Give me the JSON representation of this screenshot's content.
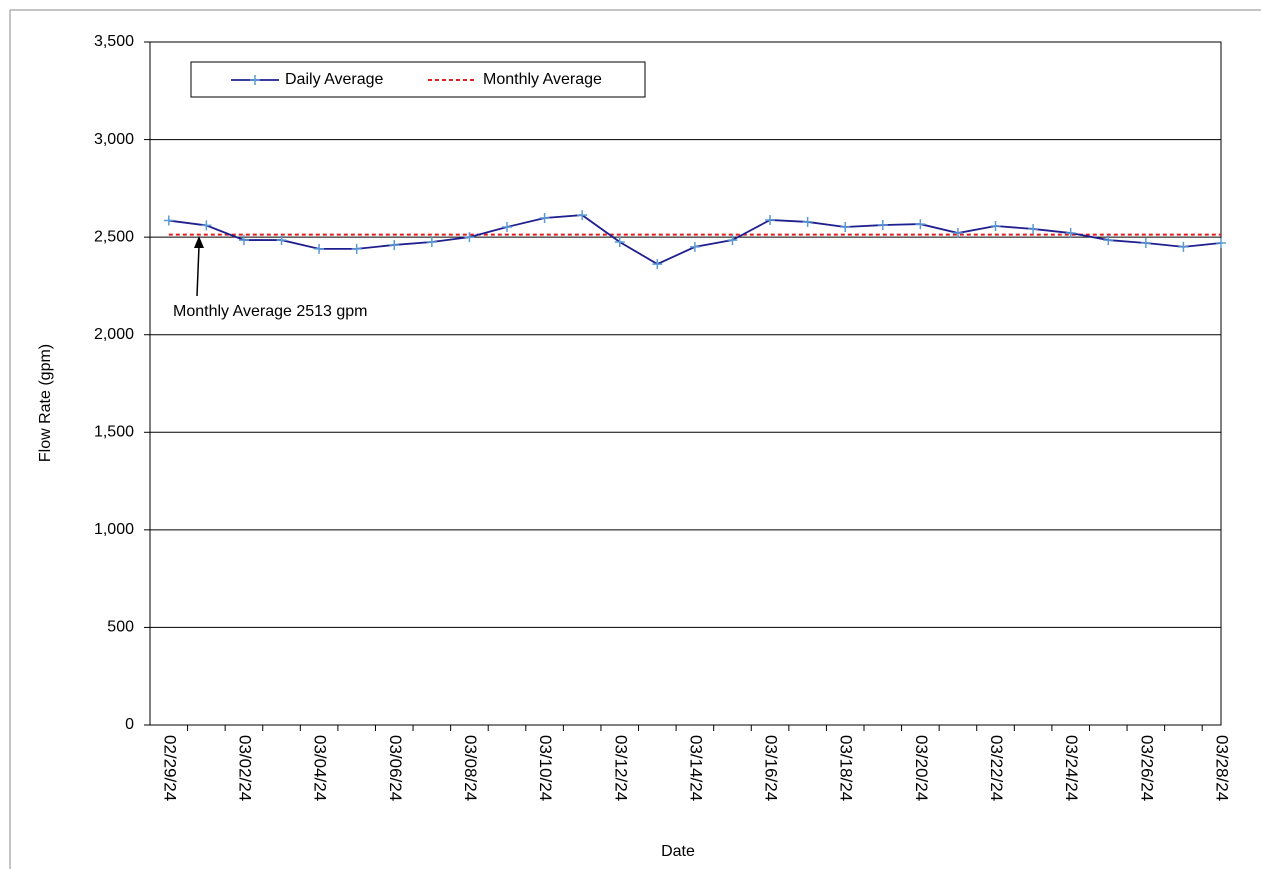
{
  "chart_data": {
    "type": "line",
    "x_label": "Date",
    "y_label": "Flow Rate (gpm)",
    "annotation": "Monthly Average 2513 gpm",
    "categories": [
      "02/29/24",
      null,
      "03/02/24",
      null,
      "03/04/24",
      null,
      "03/06/24",
      null,
      "03/08/24",
      null,
      "03/10/24",
      null,
      "03/12/24",
      null,
      "03/14/24",
      null,
      "03/16/24",
      null,
      "03/18/24",
      null,
      "03/20/24",
      null,
      "03/22/24",
      null,
      "03/24/24",
      null,
      "03/26/24",
      null,
      "03/28/24"
    ],
    "series": [
      {
        "name": "Daily Average",
        "color": "#1f1f8f",
        "marker_color": "#5b9bd5",
        "values": [
          2585,
          2560,
          2485,
          2485,
          2440,
          2440,
          2460,
          2475,
          2500,
          2552,
          2598,
          2613,
          2475,
          2362,
          2450,
          2485,
          2588,
          2578,
          2552,
          2562,
          2567,
          2521,
          2557,
          2542,
          2521,
          2485,
          2470,
          2450,
          2470
        ]
      },
      {
        "name": "Monthly Average",
        "color": "#e02020",
        "dashed": true,
        "values": [
          2513,
          2513,
          2513,
          2513,
          2513,
          2513,
          2513,
          2513,
          2513,
          2513,
          2513,
          2513,
          2513,
          2513,
          2513,
          2513,
          2513,
          2513,
          2513,
          2513,
          2513,
          2513,
          2513,
          2513,
          2513,
          2513,
          2513,
          2513,
          2513
        ]
      }
    ],
    "ylim": [
      0,
      3500
    ],
    "yticks": [
      0,
      500,
      {
        "value": 1000,
        "label": "1,000"
      },
      {
        "value": 1500,
        "label": "1,500"
      },
      {
        "value": 2000,
        "label": "2,000"
      },
      {
        "value": 2500,
        "label": "2,500"
      },
      {
        "value": 3000,
        "label": "3,000"
      },
      {
        "value": 3500,
        "label": "3,500"
      }
    ],
    "grid": true
  }
}
